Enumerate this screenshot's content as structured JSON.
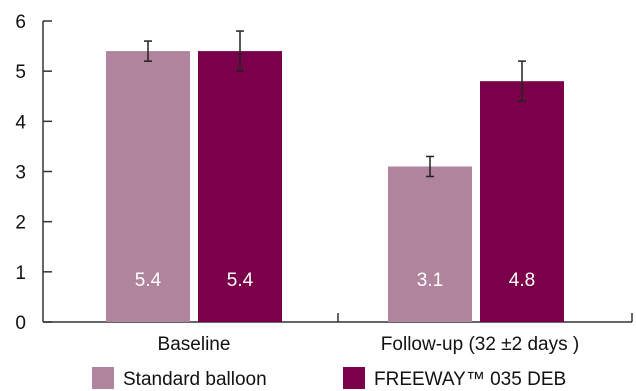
{
  "chart_data": {
    "type": "bar",
    "categories": [
      "Baseline",
      "Follow-up (32 ±2 days )"
    ],
    "series": [
      {
        "name": "Standard balloon",
        "values": [
          5.4,
          3.1
        ],
        "error_low": [
          5.2,
          2.9
        ],
        "error_high": [
          5.6,
          3.3
        ],
        "color": "#b0849c"
      },
      {
        "name": "FREEWAY™ 035 DEB",
        "values": [
          5.4,
          4.8
        ],
        "error_low": [
          5.0,
          4.4
        ],
        "error_high": [
          5.8,
          5.2
        ],
        "color": "#790049"
      }
    ],
    "ylim": [
      0,
      6
    ],
    "yticks": [
      "0",
      "1",
      "2",
      "3",
      "4",
      "5",
      "6"
    ],
    "data_labels": [
      [
        "5.4",
        "3.1"
      ],
      [
        "5.4",
        "4.8"
      ]
    ],
    "legend_position": "bottom",
    "grid": false
  }
}
